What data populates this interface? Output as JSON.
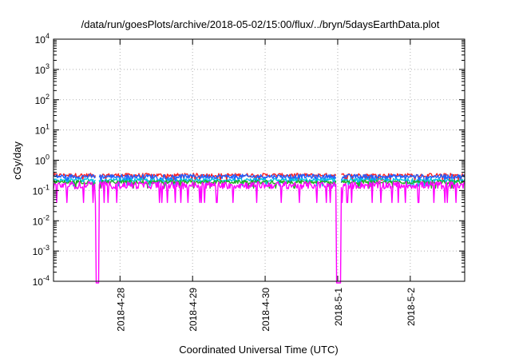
{
  "chart_data": {
    "type": "line",
    "title": "/data/run/goesPlots/archive/2018-05-02/15:00/flux/../bryn/5daysEarthData.plot",
    "xlabel": "Coordinated Universal Time (UTC)",
    "ylabel": "cGy/day",
    "yscale": "log",
    "ylim": [
      0.0001,
      10000
    ],
    "xlim": [
      "2018-04-27 02:00",
      "2018-05-02 18:00"
    ],
    "x_ticks": [
      "2018-4-28",
      "2018-4-29",
      "2018-4-30",
      "2018-5-1",
      "2018-5-2"
    ],
    "y_ticks": [
      {
        "base": "10",
        "exp": "4"
      },
      {
        "base": "10",
        "exp": "3"
      },
      {
        "base": "10",
        "exp": "2"
      },
      {
        "base": "10",
        "exp": "1"
      },
      {
        "base": "10",
        "exp": "0"
      },
      {
        "base": "10",
        "exp": "-1"
      },
      {
        "base": "10",
        "exp": "-2"
      },
      {
        "base": "10",
        "exp": "-3"
      },
      {
        "base": "10",
        "exp": "-4"
      }
    ],
    "grid": true,
    "legend": "none",
    "data_gaps": [
      {
        "start": "2018-04-27 16:00",
        "end": "2018-04-27 17:00"
      },
      {
        "start": "2018-04-30 23:30",
        "end": "2018-05-01 01:00"
      }
    ],
    "series": [
      {
        "color": "#ff2020",
        "typical": 0.32,
        "min": 0.22,
        "max": 0.5
      },
      {
        "color": "#2060ff",
        "typical": 0.29,
        "min": 0.18,
        "max": 0.46
      },
      {
        "color": "#00c0e0",
        "typical": 0.22,
        "min": 0.14,
        "max": 0.3
      },
      {
        "color": "#20b020",
        "typical": 0.19,
        "min": 0.12,
        "max": 0.25
      },
      {
        "color": "#ff00ff",
        "typical": 0.15,
        "min": 0.04,
        "max": 0.2
      }
    ]
  }
}
